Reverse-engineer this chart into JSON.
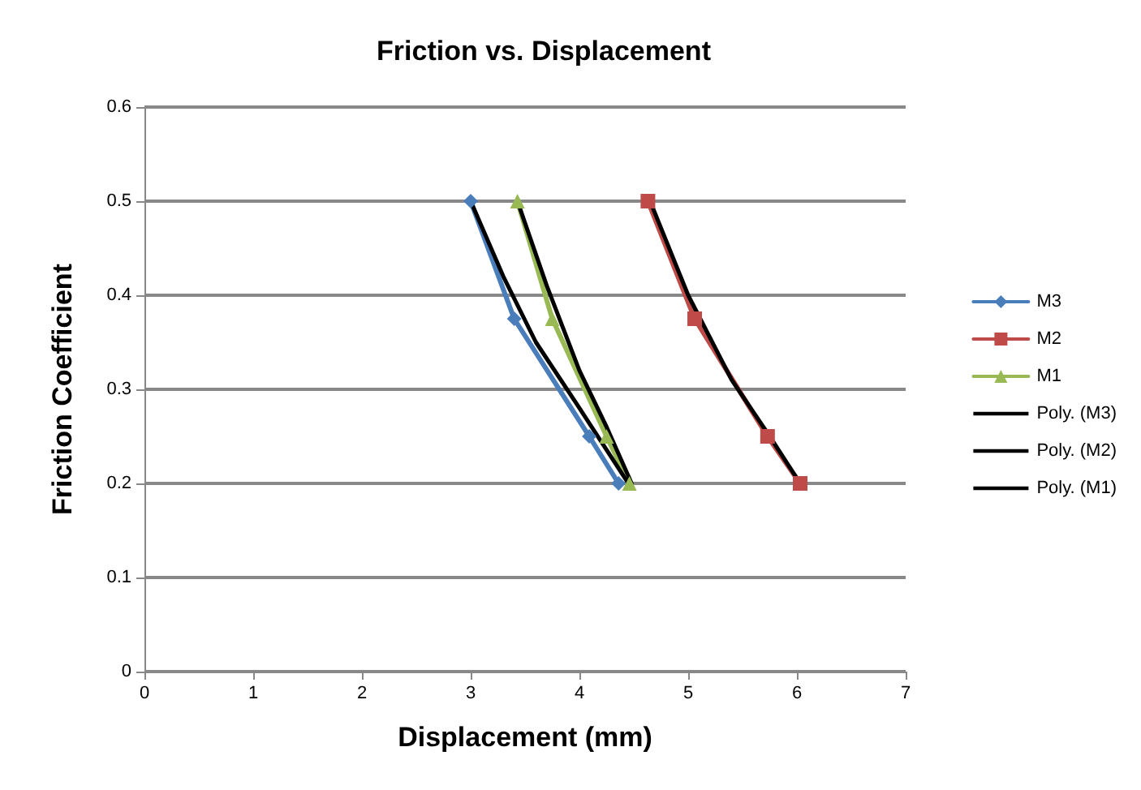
{
  "chart_data": {
    "type": "line",
    "title": "Friction vs. Displacement",
    "xlabel": "Displacement (mm)",
    "ylabel": "Friction Coefficient",
    "xlim": [
      0,
      7
    ],
    "xticks": [
      0,
      1,
      2,
      3,
      4,
      5,
      6,
      7
    ],
    "ylim": [
      0,
      0.6
    ],
    "yticks": [
      0,
      0.1,
      0.2,
      0.3,
      0.4,
      0.5,
      0.6
    ],
    "grid": "y",
    "legend": "right",
    "series": [
      {
        "name": "M3",
        "color": "#4a7ebb",
        "marker": "diamond",
        "x": [
          3.0,
          3.4,
          4.09,
          4.36
        ],
        "values": [
          0.5,
          0.375,
          0.25,
          0.2
        ]
      },
      {
        "name": "M2",
        "color": "#be4b48",
        "marker": "square",
        "x": [
          4.63,
          5.06,
          5.73,
          6.03
        ],
        "values": [
          0.5,
          0.375,
          0.25,
          0.2
        ]
      },
      {
        "name": "M1",
        "color": "#98b954",
        "marker": "triangle",
        "x": [
          3.43,
          3.75,
          4.25,
          4.46
        ],
        "values": [
          0.5,
          0.375,
          0.25,
          0.2
        ]
      },
      {
        "name": "Poly. (M3)",
        "color": "#000000",
        "marker": "none",
        "x": [
          3.0,
          3.3,
          3.6,
          4.0,
          4.45
        ],
        "values": [
          0.5,
          0.42,
          0.35,
          0.28,
          0.2
        ]
      },
      {
        "name": "Poly. (M2)",
        "color": "#000000",
        "marker": "none",
        "x": [
          4.65,
          5.0,
          5.4,
          5.75,
          6.03
        ],
        "values": [
          0.5,
          0.4,
          0.31,
          0.25,
          0.2
        ]
      },
      {
        "name": "Poly. (M1)",
        "color": "#000000",
        "marker": "none",
        "x": [
          3.43,
          3.7,
          4.0,
          4.25,
          4.48
        ],
        "values": [
          0.5,
          0.41,
          0.32,
          0.26,
          0.2
        ]
      }
    ]
  }
}
